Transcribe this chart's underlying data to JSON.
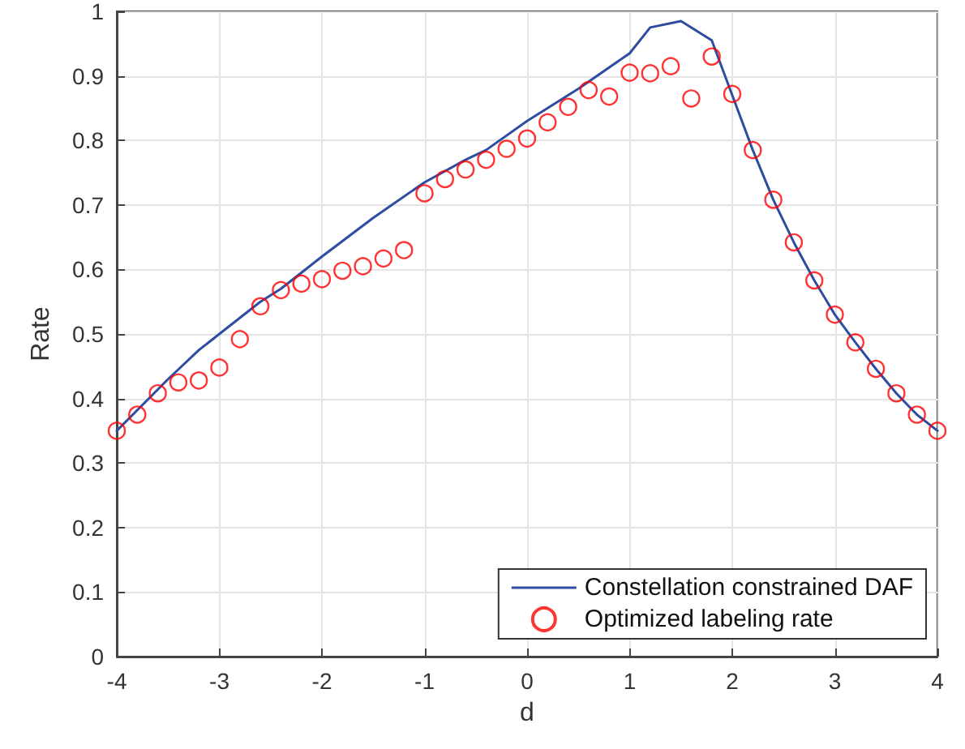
{
  "chart_data": {
    "type": "line",
    "xlabel": "d",
    "ylabel": "Rate",
    "xlim": [
      -4,
      4
    ],
    "xticks": [
      -4,
      -3,
      -2,
      -1,
      0,
      1,
      2,
      3,
      4
    ],
    "ylim": [
      0,
      1
    ],
    "yticks": [
      0,
      0.1,
      0.2,
      0.3,
      0.4,
      0.5,
      0.6,
      0.7,
      0.8,
      0.9,
      1
    ],
    "grid": true,
    "legend": "bottom right",
    "series": [
      {
        "name": "Constellation constrained DAF",
        "color": "#2e4da0",
        "marker": "none",
        "x": [
          -4,
          -3.5,
          -3.2,
          -3,
          -2.6,
          -2.4,
          -2,
          -1.5,
          -1,
          -0.6,
          -0.4,
          0,
          0.5,
          1,
          1.2,
          1.5,
          1.8,
          2,
          2.2,
          2.4,
          2.6,
          2.8,
          3,
          3.2,
          3.4,
          3.6,
          3.8,
          4
        ],
        "values": [
          0.35,
          0.43,
          0.475,
          0.5,
          0.55,
          0.57,
          0.62,
          0.68,
          0.735,
          0.77,
          0.785,
          0.83,
          0.88,
          0.935,
          0.975,
          0.985,
          0.955,
          0.87,
          0.785,
          0.708,
          0.642,
          0.583,
          0.53,
          0.487,
          0.446,
          0.408,
          0.375,
          0.35
        ]
      },
      {
        "name": "Optimized labeling rate",
        "type": "scatter",
        "color": "#ff0000",
        "marker": "circle",
        "x": [
          -4,
          -3.8,
          -3.6,
          -3.4,
          -3.2,
          -3,
          -2.8,
          -2.6,
          -2.4,
          -2.2,
          -2,
          -1.8,
          -1.6,
          -1.4,
          -1.2,
          -1,
          -0.8,
          -0.6,
          -0.4,
          -0.2,
          0,
          0.2,
          0.4,
          0.6,
          0.8,
          1,
          1.2,
          1.4,
          1.6,
          1.8,
          2,
          2.2,
          2.4,
          2.6,
          2.8,
          3,
          3.2,
          3.4,
          3.6,
          3.8,
          4
        ],
        "values": [
          0.35,
          0.375,
          0.408,
          0.425,
          0.428,
          0.448,
          0.492,
          0.543,
          0.568,
          0.578,
          0.585,
          0.598,
          0.605,
          0.617,
          0.63,
          0.718,
          0.74,
          0.755,
          0.77,
          0.787,
          0.803,
          0.828,
          0.852,
          0.878,
          0.868,
          0.905,
          0.904,
          0.915,
          0.865,
          0.93,
          0.872,
          0.785,
          0.708,
          0.642,
          0.583,
          0.53,
          0.487,
          0.446,
          0.408,
          0.375,
          0.35
        ]
      }
    ]
  }
}
